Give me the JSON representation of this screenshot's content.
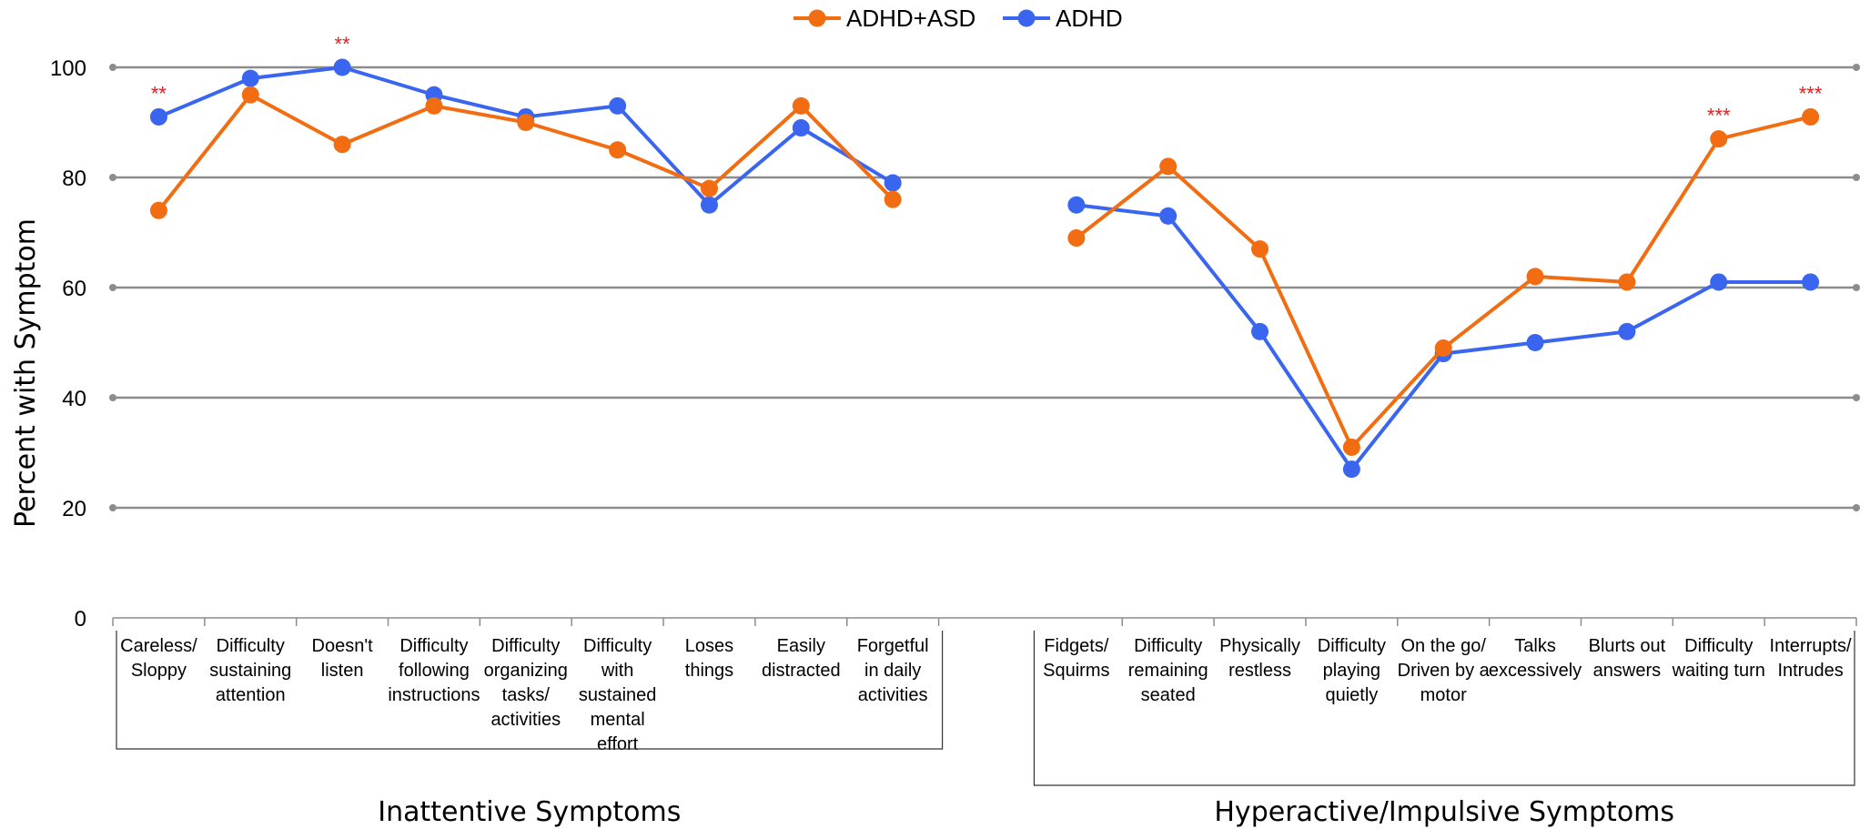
{
  "chart_data": {
    "type": "line",
    "ylabel": "Percent with Symptom",
    "ylim": [
      0,
      100
    ],
    "yticks": [
      0,
      20,
      40,
      60,
      80,
      100
    ],
    "grid": true,
    "legend_placement": "top-center",
    "colors": {
      "ADHD+ASD": "#f26c12",
      "ADHD": "#3a66ef",
      "significance": "#e02020"
    },
    "groups": [
      {
        "label": "Inattentive Symptoms",
        "start": 0,
        "end": 8
      },
      {
        "label": "Hyperactive/Impulsive Symptoms",
        "start": 10,
        "end": 18
      }
    ],
    "categories": [
      {
        "lines": [
          "Careless/",
          "Sloppy"
        ],
        "sig": "**"
      },
      {
        "lines": [
          "Difficulty",
          "sustaining",
          "attention"
        ],
        "sig": ""
      },
      {
        "lines": [
          "Doesn't",
          "listen"
        ],
        "sig": "**"
      },
      {
        "lines": [
          "Difficulty",
          "following",
          "instructions"
        ],
        "sig": ""
      },
      {
        "lines": [
          "Difficulty",
          "organizing",
          "tasks/",
          "activities"
        ],
        "sig": ""
      },
      {
        "lines": [
          "Difficulty",
          "with",
          "sustained",
          "mental",
          "effort"
        ],
        "sig": ""
      },
      {
        "lines": [
          "Loses",
          "things"
        ],
        "sig": ""
      },
      {
        "lines": [
          "Easily",
          "distracted"
        ],
        "sig": ""
      },
      {
        "lines": [
          "Forgetful",
          "in daily",
          "activities"
        ],
        "sig": ""
      },
      {
        "lines": [],
        "sig": ""
      },
      {
        "lines": [
          "Fidgets/",
          "Squirms"
        ],
        "sig": ""
      },
      {
        "lines": [
          "Difficulty",
          "remaining",
          "seated"
        ],
        "sig": ""
      },
      {
        "lines": [
          "Physically",
          "restless"
        ],
        "sig": ""
      },
      {
        "lines": [
          "Difficulty",
          "playing",
          "quietly"
        ],
        "sig": ""
      },
      {
        "lines": [
          "On the go/",
          "Driven by a",
          "motor"
        ],
        "sig": ""
      },
      {
        "lines": [
          "Talks",
          "excessively"
        ],
        "sig": ""
      },
      {
        "lines": [
          "Blurts out",
          "answers"
        ],
        "sig": ""
      },
      {
        "lines": [
          "Difficulty",
          "waiting turn"
        ],
        "sig": "***"
      },
      {
        "lines": [
          "Interrupts/",
          "Intrudes"
        ],
        "sig": "***"
      }
    ],
    "series": [
      {
        "name": "ADHD+ASD",
        "values": [
          74,
          95,
          86,
          93,
          90,
          85,
          78,
          93,
          76,
          null,
          69,
          82,
          67,
          31,
          49,
          62,
          61,
          87,
          91
        ]
      },
      {
        "name": "ADHD",
        "values": [
          91,
          98,
          100,
          95,
          91,
          93,
          75,
          89,
          79,
          null,
          75,
          73,
          52,
          27,
          48,
          50,
          52,
          61,
          61
        ]
      }
    ]
  }
}
